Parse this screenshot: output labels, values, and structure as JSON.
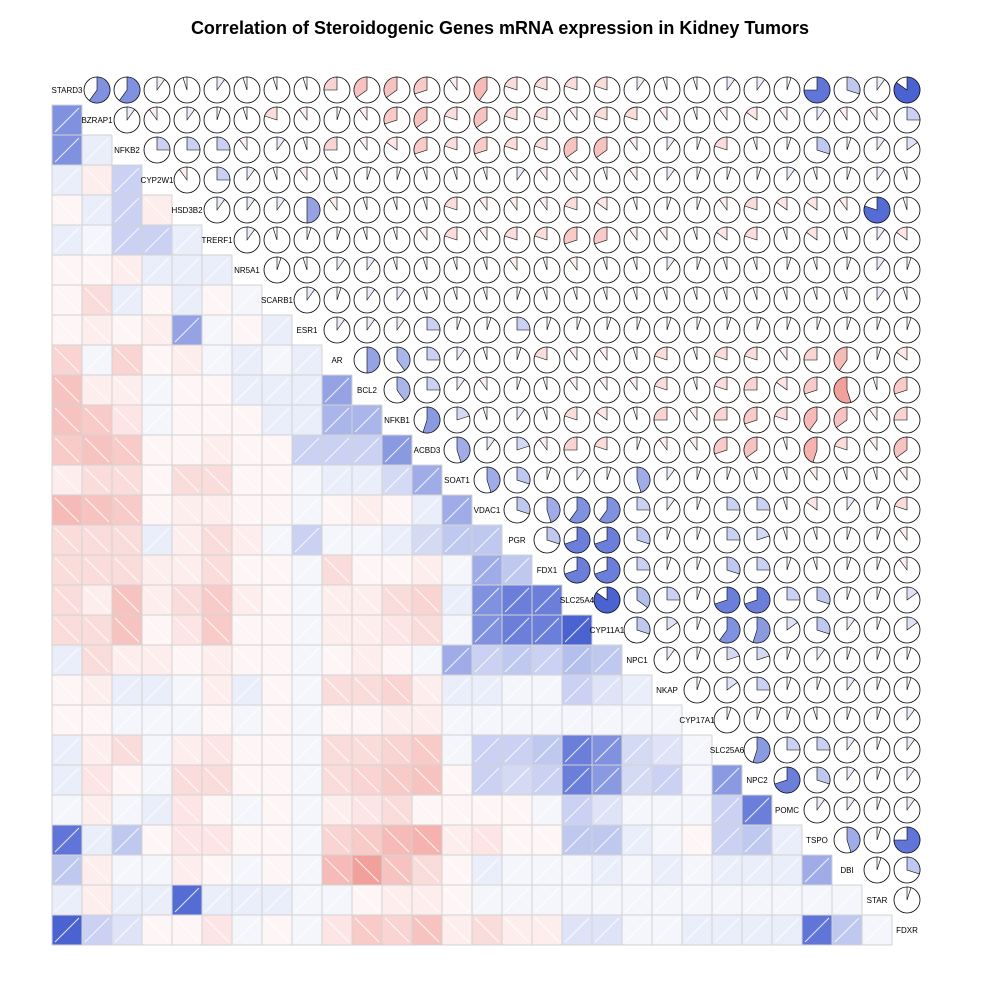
{
  "chart_data": {
    "type": "heatmap",
    "title": "Correlation of Steroidogenic Genes mRNA expression in Kidney Tumors",
    "genes": [
      "STARD3",
      "BZRAP1",
      "NFKB2",
      "CYP2W1",
      "HSD3B2",
      "TRERF1",
      "NR5A1",
      "SCARB1",
      "ESR1",
      "AR",
      "BCL2",
      "NFKB1",
      "ACBD3",
      "SOAT1",
      "VDAC1",
      "PGR",
      "FDX1",
      "SLC25A4",
      "CYP11A1",
      "NPC1",
      "NKAP",
      "CYP17A1",
      "SLC25A6",
      "NPC2",
      "POMC",
      "TSPO",
      "DBI",
      "STAR",
      "FDXR"
    ],
    "lower_panel": "shade",
    "upper_panel": "pie",
    "diagonal": "gene name",
    "color_negative": "#e8534a",
    "color_positive": "#2b47c9",
    "matrix": [
      [
        1.0,
        0.6,
        0.6,
        0.1,
        -0.05,
        0.1,
        -0.05,
        -0.05,
        -0.05,
        -0.25,
        -0.35,
        -0.35,
        -0.3,
        -0.1,
        -0.4,
        -0.2,
        -0.2,
        -0.2,
        -0.2,
        0.1,
        -0.05,
        -0.05,
        0.1,
        0.1,
        0.05,
        0.75,
        0.3,
        0.1,
        0.85
      ],
      [
        0.6,
        1.0,
        0.1,
        -0.1,
        0.1,
        0.05,
        -0.05,
        -0.2,
        -0.1,
        0.05,
        -0.1,
        -0.3,
        -0.35,
        -0.2,
        -0.35,
        -0.2,
        -0.2,
        -0.1,
        -0.2,
        -0.2,
        -0.1,
        -0.05,
        -0.1,
        -0.15,
        -0.1,
        0.1,
        -0.1,
        -0.1,
        0.25
      ],
      [
        0.6,
        0.1,
        1.0,
        0.25,
        0.25,
        0.25,
        -0.1,
        0.1,
        -0.05,
        -0.25,
        -0.1,
        -0.15,
        -0.3,
        -0.2,
        -0.3,
        -0.2,
        -0.2,
        -0.35,
        -0.35,
        -0.1,
        0.1,
        0.05,
        -0.2,
        -0.05,
        0.05,
        0.3,
        0.05,
        0.1,
        0.15
      ],
      [
        0.1,
        -0.1,
        0.25,
        1.0,
        -0.1,
        0.25,
        0.1,
        -0.05,
        -0.1,
        -0.05,
        0.05,
        0.05,
        -0.05,
        -0.05,
        -0.05,
        0.1,
        -0.1,
        -0.1,
        -0.05,
        -0.1,
        0.1,
        0.05,
        0.05,
        0.05,
        0.1,
        -0.05,
        0.05,
        0.1,
        -0.05
      ],
      [
        -0.05,
        0.1,
        0.25,
        -0.1,
        1.0,
        0.1,
        0.1,
        0.1,
        0.5,
        -0.1,
        -0.05,
        -0.05,
        -0.05,
        -0.2,
        -0.1,
        -0.1,
        -0.1,
        -0.2,
        -0.15,
        -0.05,
        0.05,
        0.05,
        -0.1,
        -0.2,
        -0.15,
        -0.15,
        -0.1,
        0.8,
        -0.05
      ],
      [
        0.1,
        0.05,
        0.25,
        0.25,
        0.1,
        1.0,
        0.1,
        -0.05,
        0.05,
        0.05,
        -0.05,
        -0.05,
        -0.1,
        -0.2,
        -0.1,
        -0.2,
        -0.2,
        -0.3,
        -0.3,
        -0.1,
        -0.1,
        -0.05,
        -0.15,
        -0.2,
        -0.05,
        -0.15,
        -0.05,
        0.1,
        -0.15
      ],
      [
        -0.05,
        -0.05,
        -0.1,
        0.1,
        0.1,
        0.1,
        1.0,
        0.05,
        -0.05,
        0.1,
        0.1,
        -0.05,
        -0.05,
        -0.05,
        -0.05,
        -0.1,
        -0.05,
        -0.1,
        -0.05,
        -0.05,
        0.1,
        0.05,
        -0.05,
        -0.05,
        0.05,
        -0.05,
        0.05,
        0.1,
        0.05
      ],
      [
        -0.05,
        -0.2,
        0.1,
        -0.05,
        0.1,
        -0.05,
        0.05,
        1.0,
        0.1,
        0.05,
        0.1,
        0.1,
        -0.05,
        -0.05,
        -0.05,
        0.05,
        -0.05,
        -0.05,
        -0.05,
        -0.05,
        -0.05,
        -0.05,
        -0.05,
        -0.05,
        -0.05,
        -0.05,
        -0.05,
        0.1,
        -0.05
      ],
      [
        -0.05,
        -0.1,
        -0.05,
        -0.1,
        0.5,
        0.05,
        -0.05,
        0.1,
        1.0,
        0.1,
        0.1,
        0.1,
        0.25,
        0.05,
        0.05,
        0.25,
        0.05,
        0.05,
        0.05,
        0.05,
        0.05,
        0.05,
        0.05,
        0.05,
        0.05,
        0.05,
        0.05,
        0.05,
        0.05
      ],
      [
        -0.25,
        0.05,
        -0.25,
        -0.05,
        -0.1,
        0.05,
        0.1,
        0.05,
        0.1,
        1.0,
        0.5,
        0.4,
        0.25,
        0.1,
        -0.05,
        0.05,
        -0.2,
        -0.1,
        -0.1,
        -0.05,
        -0.2,
        -0.05,
        -0.2,
        -0.2,
        -0.1,
        -0.25,
        -0.4,
        0.05,
        -0.15
      ],
      [
        -0.35,
        -0.1,
        -0.1,
        0.05,
        -0.05,
        -0.05,
        0.1,
        0.1,
        0.1,
        0.5,
        1.0,
        0.4,
        0.25,
        0.1,
        -0.1,
        0.05,
        -0.05,
        -0.1,
        -0.1,
        -0.1,
        -0.2,
        -0.05,
        -0.2,
        -0.25,
        -0.15,
        -0.3,
        -0.55,
        -0.05,
        -0.3
      ],
      [
        -0.35,
        -0.3,
        -0.15,
        0.05,
        -0.05,
        -0.05,
        -0.05,
        0.1,
        0.1,
        0.4,
        0.4,
        1.0,
        0.55,
        0.2,
        -0.05,
        0.1,
        -0.05,
        -0.2,
        -0.15,
        -0.05,
        -0.25,
        -0.1,
        -0.25,
        -0.3,
        -0.2,
        -0.4,
        -0.35,
        -0.1,
        -0.25
      ],
      [
        -0.3,
        -0.35,
        -0.3,
        -0.05,
        -0.05,
        -0.1,
        -0.05,
        -0.05,
        0.25,
        0.25,
        0.25,
        0.55,
        1.0,
        0.45,
        0.1,
        0.2,
        -0.1,
        -0.25,
        -0.2,
        0.05,
        -0.1,
        -0.1,
        -0.3,
        -0.35,
        -0.05,
        -0.45,
        -0.2,
        -0.1,
        -0.35
      ],
      [
        -0.1,
        -0.2,
        -0.2,
        -0.05,
        -0.2,
        -0.2,
        -0.05,
        -0.05,
        0.05,
        0.1,
        0.1,
        0.2,
        0.45,
        1.0,
        0.45,
        0.3,
        0.05,
        0.1,
        0.05,
        0.45,
        0.1,
        0.05,
        0.05,
        -0.05,
        -0.05,
        -0.1,
        -0.05,
        -0.05,
        -0.1
      ],
      [
        -0.4,
        -0.35,
        -0.3,
        -0.05,
        -0.1,
        -0.1,
        -0.05,
        -0.05,
        0.05,
        -0.05,
        -0.1,
        -0.05,
        0.1,
        0.45,
        1.0,
        0.3,
        0.45,
        0.6,
        0.6,
        0.25,
        0.1,
        0.05,
        0.25,
        0.25,
        -0.05,
        -0.15,
        0.1,
        0.05,
        -0.2
      ],
      [
        -0.2,
        -0.2,
        -0.2,
        0.1,
        -0.1,
        -0.2,
        -0.1,
        0.05,
        0.25,
        0.05,
        0.05,
        0.1,
        0.2,
        0.3,
        0.3,
        1.0,
        0.3,
        0.7,
        0.7,
        0.3,
        0.05,
        0.05,
        0.25,
        0.2,
        -0.05,
        -0.05,
        0.05,
        0.05,
        -0.1
      ],
      [
        -0.2,
        -0.2,
        -0.2,
        -0.1,
        -0.1,
        -0.2,
        -0.05,
        -0.05,
        0.05,
        -0.2,
        -0.05,
        -0.05,
        -0.1,
        0.05,
        0.45,
        0.3,
        1.0,
        0.7,
        0.7,
        0.25,
        0.05,
        0.05,
        0.3,
        0.25,
        0.05,
        -0.05,
        0.05,
        0.05,
        -0.1
      ],
      [
        -0.2,
        -0.1,
        -0.35,
        -0.1,
        -0.2,
        -0.3,
        -0.1,
        -0.05,
        0.05,
        -0.1,
        -0.1,
        -0.2,
        -0.25,
        0.1,
        0.6,
        0.7,
        0.7,
        1.0,
        0.85,
        0.35,
        0.25,
        0.05,
        0.7,
        0.7,
        0.25,
        0.3,
        0.05,
        0.05,
        0.15
      ],
      [
        -0.2,
        -0.2,
        -0.35,
        -0.05,
        -0.15,
        -0.3,
        -0.05,
        -0.05,
        0.05,
        -0.1,
        -0.1,
        -0.15,
        -0.2,
        0.05,
        0.6,
        0.7,
        0.7,
        0.85,
        1.0,
        0.3,
        0.15,
        0.05,
        0.6,
        0.55,
        0.15,
        0.3,
        0.1,
        0.05,
        0.15
      ],
      [
        0.1,
        -0.2,
        -0.1,
        -0.1,
        -0.05,
        -0.1,
        -0.05,
        -0.05,
        0.05,
        -0.05,
        -0.1,
        -0.05,
        0.05,
        0.45,
        0.25,
        0.3,
        0.25,
        0.35,
        0.3,
        1.0,
        0.1,
        0.05,
        0.2,
        0.2,
        0.05,
        0.1,
        0.05,
        0.05,
        0.05
      ],
      [
        -0.05,
        -0.1,
        0.1,
        0.1,
        0.05,
        -0.1,
        0.1,
        -0.05,
        0.05,
        -0.2,
        -0.2,
        -0.25,
        -0.1,
        0.1,
        0.1,
        0.05,
        0.05,
        0.25,
        0.15,
        0.1,
        1.0,
        0.05,
        0.15,
        0.25,
        0.05,
        0.05,
        0.1,
        0.05,
        0.05
      ],
      [
        -0.05,
        -0.05,
        0.05,
        0.05,
        0.05,
        -0.05,
        0.05,
        -0.05,
        0.05,
        -0.05,
        -0.05,
        -0.1,
        -0.1,
        0.05,
        0.05,
        0.05,
        0.05,
        0.05,
        0.05,
        0.05,
        0.05,
        1.0,
        0.05,
        0.05,
        0.05,
        -0.05,
        0.05,
        0.05,
        0.1
      ],
      [
        0.1,
        -0.1,
        -0.2,
        0.05,
        -0.1,
        -0.15,
        -0.05,
        -0.05,
        0.05,
        -0.2,
        -0.2,
        -0.25,
        -0.3,
        0.05,
        0.25,
        0.25,
        0.3,
        0.7,
        0.6,
        0.2,
        0.15,
        0.05,
        1.0,
        0.55,
        0.25,
        0.25,
        0.1,
        0.05,
        0.1
      ],
      [
        0.1,
        -0.15,
        -0.05,
        0.05,
        -0.2,
        -0.2,
        -0.05,
        -0.05,
        0.05,
        -0.2,
        -0.25,
        -0.3,
        -0.35,
        -0.05,
        0.25,
        0.2,
        0.25,
        0.7,
        0.55,
        0.2,
        0.25,
        0.05,
        0.55,
        1.0,
        0.7,
        0.3,
        0.1,
        0.05,
        0.1
      ],
      [
        0.05,
        -0.1,
        0.05,
        0.1,
        -0.15,
        -0.05,
        0.05,
        -0.05,
        0.05,
        -0.1,
        -0.15,
        -0.2,
        -0.05,
        -0.05,
        -0.05,
        -0.05,
        0.05,
        0.25,
        0.15,
        0.05,
        0.05,
        0.05,
        0.25,
        0.7,
        1.0,
        0.1,
        0.1,
        0.05,
        0.1
      ],
      [
        0.75,
        0.1,
        0.3,
        -0.05,
        -0.15,
        -0.15,
        -0.05,
        -0.05,
        0.05,
        -0.25,
        -0.3,
        -0.4,
        -0.45,
        -0.1,
        -0.15,
        -0.05,
        -0.05,
        0.3,
        0.3,
        0.1,
        0.05,
        -0.05,
        0.25,
        0.3,
        0.1,
        1.0,
        0.45,
        0.05,
        0.75
      ],
      [
        0.3,
        -0.1,
        0.05,
        0.05,
        -0.1,
        -0.05,
        0.05,
        -0.05,
        0.05,
        -0.4,
        -0.55,
        -0.35,
        -0.2,
        -0.05,
        0.1,
        0.05,
        0.05,
        0.05,
        0.1,
        0.05,
        0.1,
        0.05,
        0.1,
        0.1,
        0.1,
        0.45,
        1.0,
        0.05,
        0.3
      ],
      [
        0.1,
        -0.1,
        0.1,
        0.1,
        0.8,
        0.1,
        0.1,
        0.1,
        0.05,
        0.05,
        -0.05,
        -0.1,
        -0.1,
        -0.05,
        0.05,
        0.05,
        0.05,
        0.05,
        0.05,
        0.05,
        0.05,
        0.05,
        0.05,
        0.05,
        0.05,
        0.05,
        0.05,
        1.0,
        0.05
      ],
      [
        0.85,
        0.25,
        0.15,
        -0.05,
        -0.05,
        -0.15,
        0.05,
        -0.05,
        0.05,
        -0.15,
        -0.3,
        -0.25,
        -0.35,
        -0.1,
        -0.2,
        -0.1,
        -0.1,
        0.15,
        0.15,
        0.05,
        0.05,
        0.1,
        0.1,
        0.1,
        0.1,
        0.75,
        0.3,
        0.05,
        1.0
      ]
    ]
  }
}
